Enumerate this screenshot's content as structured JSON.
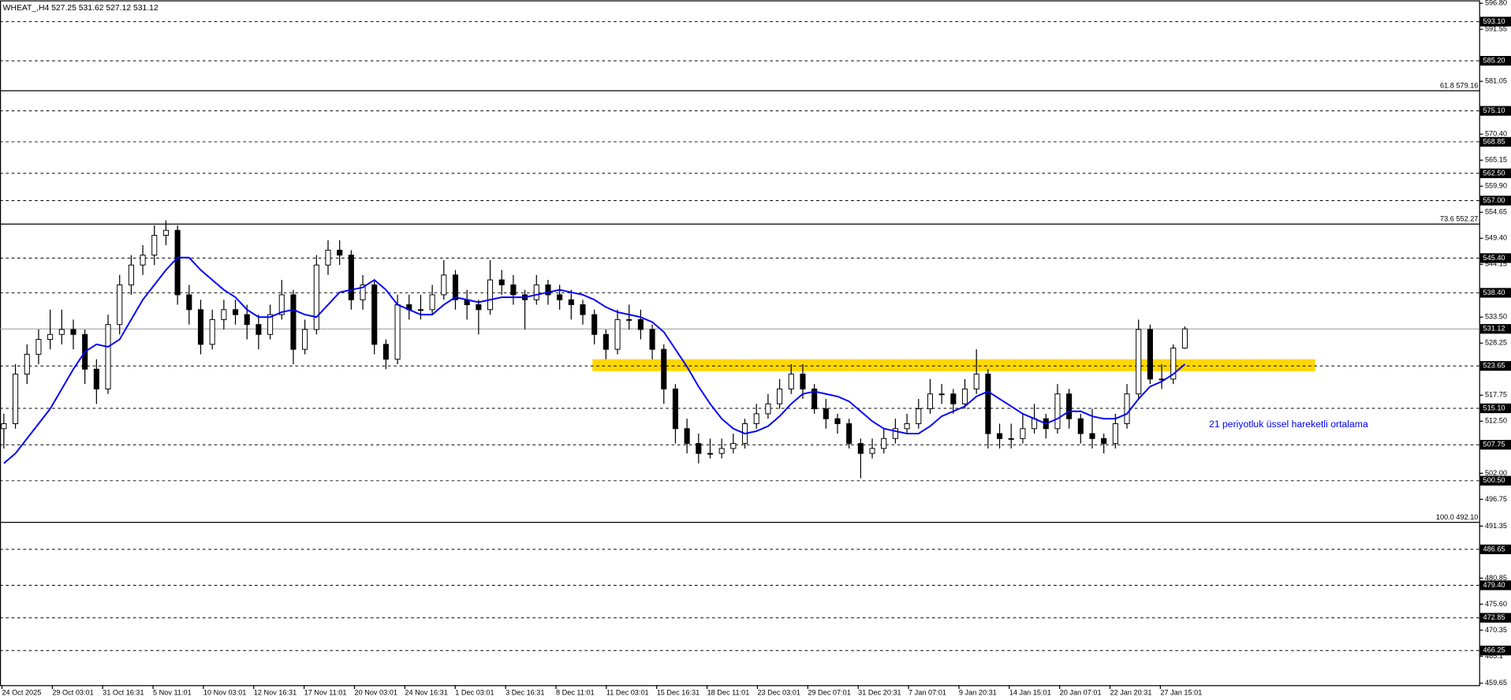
{
  "chart_data": {
    "type": "candlestick",
    "title": "WHEAT_,H4  527.25 531.62 527.12 531.12",
    "ohlc": [
      [
        511,
        514,
        507,
        512
      ],
      [
        512,
        524,
        511,
        522
      ],
      [
        522,
        528,
        520,
        526
      ],
      [
        526,
        531,
        524,
        529
      ],
      [
        529,
        535,
        527,
        530
      ],
      [
        530,
        535,
        528,
        531
      ],
      [
        531,
        533,
        527,
        530
      ],
      [
        530,
        531,
        520,
        523
      ],
      [
        523,
        525,
        516,
        519
      ],
      [
        519,
        534,
        518,
        532
      ],
      [
        532,
        542,
        530,
        540
      ],
      [
        540,
        546,
        538,
        544
      ],
      [
        544,
        548,
        542,
        546
      ],
      [
        546,
        552,
        544,
        550
      ],
      [
        550,
        553,
        548,
        551
      ],
      [
        551,
        552,
        536,
        538
      ],
      [
        538,
        540,
        532,
        535
      ],
      [
        535,
        537,
        526,
        528
      ],
      [
        528,
        535,
        527,
        533
      ],
      [
        533,
        537,
        531,
        535
      ],
      [
        535,
        537,
        532,
        534
      ],
      [
        534,
        536,
        529,
        532
      ],
      [
        532,
        534,
        527,
        530
      ],
      [
        530,
        536,
        529,
        534
      ],
      [
        534,
        541,
        533,
        538
      ],
      [
        538,
        539,
        524,
        527
      ],
      [
        527,
        533,
        526,
        531
      ],
      [
        531,
        546,
        530,
        544
      ],
      [
        544,
        549,
        542,
        547
      ],
      [
        547,
        549,
        544,
        546
      ],
      [
        546,
        547,
        535,
        537
      ],
      [
        537,
        542,
        535,
        540
      ],
      [
        540,
        541,
        526,
        528
      ],
      [
        528,
        529,
        523,
        525
      ],
      [
        525,
        538,
        524,
        536
      ],
      [
        536,
        538,
        533,
        535
      ],
      [
        535,
        538,
        533,
        535
      ],
      [
        535,
        540,
        534,
        538
      ],
      [
        538,
        545,
        537,
        542
      ],
      [
        542,
        543,
        535,
        537
      ],
      [
        537,
        539,
        533,
        536
      ],
      [
        536,
        537,
        530,
        535
      ],
      [
        535,
        545,
        534,
        541
      ],
      [
        541,
        543,
        538,
        540
      ],
      [
        540,
        542,
        536,
        538
      ],
      [
        538,
        539,
        531,
        537
      ],
      [
        537,
        542,
        536,
        540
      ],
      [
        540,
        541,
        536,
        538
      ],
      [
        538,
        540,
        535,
        537
      ],
      [
        537,
        539,
        533,
        536
      ],
      [
        536,
        537,
        532,
        534
      ],
      [
        534,
        535,
        528,
        530
      ],
      [
        530,
        531,
        525,
        527
      ],
      [
        527,
        535,
        526,
        533
      ],
      [
        533,
        536,
        531,
        533
      ],
      [
        533,
        535,
        529,
        531
      ],
      [
        531,
        532,
        525,
        527
      ],
      [
        527,
        528,
        516,
        519
      ],
      [
        519,
        520,
        508,
        511
      ],
      [
        511,
        513,
        506,
        508
      ],
      [
        508,
        510,
        504,
        506
      ],
      [
        506,
        509,
        505,
        506
      ],
      [
        506,
        509,
        505,
        507
      ],
      [
        507,
        510,
        506,
        508
      ],
      [
        508,
        513,
        507,
        512
      ],
      [
        512,
        516,
        511,
        514
      ],
      [
        514,
        518,
        513,
        516
      ],
      [
        516,
        521,
        515,
        519
      ],
      [
        519,
        524,
        518,
        522
      ],
      [
        522,
        524,
        517,
        519
      ],
      [
        519,
        520,
        514,
        515
      ],
      [
        515,
        517,
        511,
        513
      ],
      [
        513,
        514,
        510,
        512
      ],
      [
        512,
        513,
        507,
        508
      ],
      [
        508,
        509,
        501,
        506
      ],
      [
        506,
        509,
        505,
        507
      ],
      [
        507,
        511,
        506,
        509
      ],
      [
        509,
        513,
        508,
        511
      ],
      [
        511,
        514,
        510,
        512
      ],
      [
        512,
        517,
        511,
        515
      ],
      [
        515,
        521,
        514,
        518
      ],
      [
        518,
        520,
        516,
        518
      ],
      [
        518,
        519,
        514,
        516
      ],
      [
        516,
        521,
        515,
        519
      ],
      [
        519,
        527,
        518,
        522
      ],
      [
        522,
        523,
        507,
        510
      ],
      [
        510,
        512,
        507,
        509
      ],
      [
        509,
        512,
        507,
        509
      ],
      [
        509,
        514,
        508,
        511
      ],
      [
        511,
        516,
        510,
        513
      ],
      [
        513,
        514,
        509,
        511
      ],
      [
        511,
        520,
        510,
        518
      ],
      [
        518,
        519,
        511,
        513
      ],
      [
        513,
        514,
        508,
        510
      ],
      [
        510,
        515,
        507,
        509
      ],
      [
        509,
        510,
        506,
        508
      ],
      [
        508,
        514,
        507,
        512
      ],
      [
        512,
        520,
        511,
        518
      ],
      [
        518,
        533,
        517,
        531
      ],
      [
        531,
        532,
        520,
        521
      ],
      [
        521,
        524,
        519,
        521
      ],
      [
        521,
        528,
        520,
        527.25
      ],
      [
        527.25,
        531.62,
        527.12,
        531.12
      ]
    ],
    "ema": [
      504,
      506,
      509,
      512,
      515,
      519,
      523,
      526.5,
      528,
      527.5,
      529,
      533,
      537,
      540,
      543,
      545.5,
      545.5,
      543,
      541,
      539,
      537.5,
      535,
      533.5,
      533.5,
      534.5,
      535,
      534,
      533.5,
      536,
      538.5,
      539,
      539.5,
      541,
      539,
      536,
      535,
      534,
      534,
      536,
      537.5,
      537,
      536.5,
      537,
      537.5,
      537.5,
      537.5,
      538,
      538.5,
      539,
      538.5,
      538,
      537,
      535.5,
      534.5,
      534,
      533.5,
      532.5,
      530.5,
      527,
      523.5,
      519.5,
      516,
      513,
      511,
      510,
      510.5,
      511.5,
      513.5,
      516,
      518,
      518.5,
      518,
      517.5,
      516.5,
      514.5,
      512.5,
      511,
      510.5,
      510,
      510,
      511.5,
      513.5,
      514.5,
      515.5,
      517.5,
      518.5,
      517,
      515.5,
      514,
      513,
      512,
      513,
      514.5,
      514.5,
      513.5,
      513,
      513,
      514,
      517,
      519.5,
      520.5,
      522,
      524
    ],
    "ema_color": "#0000ff",
    "up_color": "#ffffff",
    "down_color": "#000000",
    "annotation": "21 periyotluk üssel hareketli ortalama",
    "zone": [
      522.6,
      525
    ],
    "zone_color": "#ffd700",
    "price_line": 531.12,
    "levels": [
      {
        "value": 593.1,
        "label": "593.10"
      },
      {
        "value": 585.2,
        "label": "585.20"
      },
      {
        "value": 575.1,
        "label": "575.10"
      },
      {
        "value": 568.85,
        "label": "568.85"
      },
      {
        "value": 562.5,
        "label": "562.50"
      },
      {
        "value": 557,
        "label": "557.00"
      },
      {
        "value": 545.4,
        "label": "545.40"
      },
      {
        "value": 538.4,
        "label": "538.40"
      },
      {
        "value": 523.65,
        "label": "523.65"
      },
      {
        "value": 515.1,
        "label": "515.10"
      },
      {
        "value": 507.75,
        "label": "507.75"
      },
      {
        "value": 500.5,
        "label": "500.50"
      },
      {
        "value": 486.65,
        "label": "486.65"
      },
      {
        "value": 479.4,
        "label": "479.40"
      },
      {
        "value": 472.85,
        "label": "472.85"
      },
      {
        "value": 466.25,
        "label": "466.25"
      }
    ],
    "fib": [
      {
        "value": 579.16,
        "label": "61.8 579.16"
      },
      {
        "value": 552.27,
        "label": "73.6 552.27"
      },
      {
        "value": 492.1,
        "label": "100.0 492.10"
      }
    ],
    "ylim": [
      459.65,
      596.8
    ],
    "yticks": [
      {
        "value": 596.8,
        "label": "596.80"
      },
      591.55,
      581.05,
      {
        "value": 570.4,
        "label": "570.40"
      },
      565.15,
      {
        "value": 559.9,
        "label": "559.90"
      },
      554.65,
      {
        "value": 549.4,
        "label": "549.40"
      },
      544.15,
      {
        "value": 533.5,
        "label": "533.50"
      },
      528.25,
      517.75,
      {
        "value": 512.5,
        "label": "512.50"
      },
      {
        "value": 502,
        "label": "502.00"
      },
      496.75,
      491.35,
      480.85,
      {
        "value": 475.6,
        "label": "475.60"
      },
      470.35,
      465.1,
      459.65
    ],
    "xlabels": [
      "24 Oct 2025",
      "29 Oct 03:01",
      "31 Oct 16:31",
      "5 Nov 11:01",
      "10 Nov 03:01",
      "12 Nov 16:31",
      "17 Nov 11:01",
      "20 Nov 03:01",
      "24 Nov 16:31",
      "1 Dec 03:01",
      "3 Dec 16:31",
      "8 Dec 11:01",
      "11 Dec 03:01",
      "15 Dec 16:31",
      "18 Dec 11:01",
      "23 Dec 03:01",
      "29 Dec 07:01",
      "31 Dec 20:31",
      "7 Jan 07:01",
      "9 Jan 20:31",
      "14 Jan 15:01",
      "20 Jan 07:01",
      "22 Jan 20:31",
      "27 Jan 15:01"
    ],
    "grid": false
  }
}
